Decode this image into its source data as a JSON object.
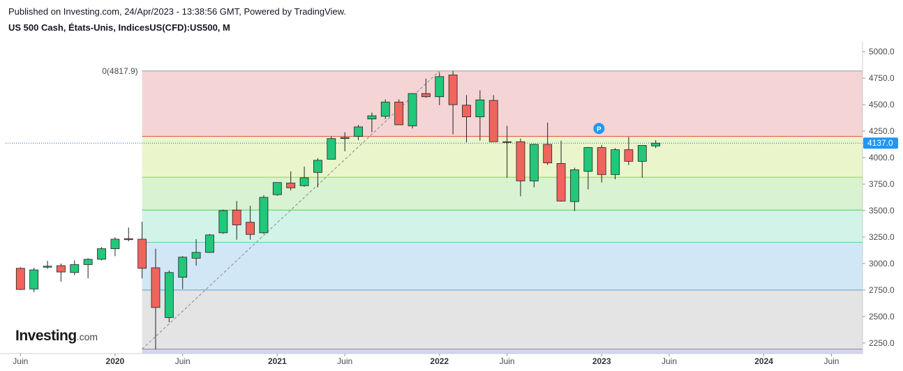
{
  "header": {
    "published": "Published on Investing.com, 24/Apr/2023 - 13:38:56 GMT, Powered by TradingView.",
    "symbol": "US 500 Cash, États-Unis, IndicesUS(CFD):US500, M"
  },
  "logo": {
    "main": "Investing",
    "domain": ".com"
  },
  "colors": {
    "up": "#22c77a",
    "down": "#f0645c",
    "wick": "#222222",
    "last_price_badge": "#2196f3",
    "marker": "#2196f3"
  },
  "chart_data": {
    "type": "candlestick",
    "ylim": [
      2150,
      5080
    ],
    "yticks": [
      "2250.0",
      "2500.0",
      "2750.0",
      "3000.0",
      "3250.0",
      "3500.0",
      "3750.0",
      "4000.0",
      "4250.0",
      "4500.0",
      "4750.0",
      "5000.0"
    ],
    "xticks": [
      {
        "label": "Juin",
        "bold": false,
        "x": 0
      },
      {
        "label": "2020",
        "bold": true,
        "x": 7
      },
      {
        "label": "Juin",
        "bold": false,
        "x": 12
      },
      {
        "label": "2021",
        "bold": true,
        "x": 19
      },
      {
        "label": "Juin",
        "bold": false,
        "x": 24
      },
      {
        "label": "2022",
        "bold": true,
        "x": 31
      },
      {
        "label": "Juin",
        "bold": false,
        "x": 36
      },
      {
        "label": "2023",
        "bold": true,
        "x": 43
      },
      {
        "label": "Juin",
        "bold": false,
        "x": 48
      },
      {
        "label": "2024",
        "bold": true,
        "x": 55
      },
      {
        "label": "Juin",
        "bold": false,
        "x": 60
      }
    ],
    "x_range": [
      -1.1,
      62.3
    ],
    "last_price": "4137.0",
    "last_price_value": 4137.0,
    "fib_label": "0(4817.9)",
    "fib_levels": [
      {
        "level": 4817.9,
        "line": "#999999",
        "fill": "#f4d4d4"
      },
      {
        "level": 4200.0,
        "line": "#e0523f",
        "fill": "#ebf5cc"
      },
      {
        "level": 3815.0,
        "line": "#9bd14c",
        "fill": "#d8f2d2"
      },
      {
        "level": 3505.0,
        "line": "#4cd44c",
        "fill": "#d2f3e8"
      },
      {
        "level": 3200.0,
        "line": "#66cfb0",
        "fill": "#d2e7f5"
      },
      {
        "level": 2750.0,
        "line": "#5c9fc9",
        "fill": "#e4e4e4"
      },
      {
        "level": 2192.0,
        "line": "#888888",
        "fill": "#d4d4f5"
      }
    ],
    "fib_fill_bottom": 2150,
    "fib_start_x": 9.0,
    "trendline": {
      "from": [
        9.0,
        2192
      ],
      "to": [
        31.0,
        4817.9
      ]
    },
    "marker": {
      "x": 42.8,
      "y": 4275,
      "label": "P"
    },
    "candles": [
      {
        "o": 2955,
        "h": 2965,
        "l": 2750,
        "c": 2755
      },
      {
        "o": 2760,
        "h": 2960,
        "l": 2730,
        "c": 2940
      },
      {
        "o": 2965,
        "h": 3025,
        "l": 2950,
        "c": 2975
      },
      {
        "o": 2980,
        "h": 3000,
        "l": 2830,
        "c": 2920
      },
      {
        "o": 2915,
        "h": 3030,
        "l": 2890,
        "c": 2990
      },
      {
        "o": 2990,
        "h": 3050,
        "l": 2860,
        "c": 3040
      },
      {
        "o": 3040,
        "h": 3155,
        "l": 3030,
        "c": 3140
      },
      {
        "o": 3140,
        "h": 3250,
        "l": 3070,
        "c": 3230
      },
      {
        "o": 3235,
        "h": 3340,
        "l": 3210,
        "c": 3225
      },
      {
        "o": 3230,
        "h": 3395,
        "l": 2860,
        "c": 2955
      },
      {
        "o": 2960,
        "h": 3140,
        "l": 2190,
        "c": 2585
      },
      {
        "o": 2490,
        "h": 2935,
        "l": 2445,
        "c": 2915
      },
      {
        "o": 2870,
        "h": 3070,
        "l": 2760,
        "c": 3060
      },
      {
        "o": 3050,
        "h": 3230,
        "l": 2980,
        "c": 3105
      },
      {
        "o": 3105,
        "h": 3280,
        "l": 3100,
        "c": 3270
      },
      {
        "o": 3290,
        "h": 3510,
        "l": 3280,
        "c": 3500
      },
      {
        "o": 3505,
        "h": 3590,
        "l": 3225,
        "c": 3365
      },
      {
        "o": 3390,
        "h": 3545,
        "l": 3225,
        "c": 3275
      },
      {
        "o": 3290,
        "h": 3645,
        "l": 3280,
        "c": 3625
      },
      {
        "o": 3650,
        "h": 3760,
        "l": 3640,
        "c": 3765
      },
      {
        "o": 3760,
        "h": 3870,
        "l": 3690,
        "c": 3715
      },
      {
        "o": 3735,
        "h": 3915,
        "l": 3725,
        "c": 3810
      },
      {
        "o": 3860,
        "h": 3995,
        "l": 3720,
        "c": 3975
      },
      {
        "o": 3985,
        "h": 4200,
        "l": 3990,
        "c": 4180
      },
      {
        "o": 4180,
        "h": 4240,
        "l": 4060,
        "c": 4190
      },
      {
        "o": 4200,
        "h": 4310,
        "l": 4165,
        "c": 4290
      },
      {
        "o": 4365,
        "h": 4425,
        "l": 4240,
        "c": 4395
      },
      {
        "o": 4390,
        "h": 4550,
        "l": 4365,
        "c": 4525
      },
      {
        "o": 4525,
        "h": 4550,
        "l": 4310,
        "c": 4310
      },
      {
        "o": 4300,
        "h": 4610,
        "l": 4275,
        "c": 4605
      },
      {
        "o": 4605,
        "h": 4745,
        "l": 4565,
        "c": 4575
      },
      {
        "o": 4575,
        "h": 4805,
        "l": 4495,
        "c": 4765
      },
      {
        "o": 4780,
        "h": 4818,
        "l": 4220,
        "c": 4500
      },
      {
        "o": 4495,
        "h": 4590,
        "l": 4145,
        "c": 4385
      },
      {
        "o": 4385,
        "h": 4635,
        "l": 4160,
        "c": 4545
      },
      {
        "o": 4540,
        "h": 4590,
        "l": 4150,
        "c": 4150
      },
      {
        "o": 4150,
        "h": 4300,
        "l": 3810,
        "c": 4145
      },
      {
        "o": 4150,
        "h": 4180,
        "l": 3635,
        "c": 3780
      },
      {
        "o": 3780,
        "h": 4130,
        "l": 3720,
        "c": 4125
      },
      {
        "o": 4125,
        "h": 4330,
        "l": 3930,
        "c": 3950
      },
      {
        "o": 3945,
        "h": 4160,
        "l": 3585,
        "c": 3590
      },
      {
        "o": 3585,
        "h": 3905,
        "l": 3495,
        "c": 3885
      },
      {
        "o": 3870,
        "h": 4100,
        "l": 3700,
        "c": 4095
      },
      {
        "o": 4095,
        "h": 4120,
        "l": 3765,
        "c": 3840
      },
      {
        "o": 3840,
        "h": 4090,
        "l": 3795,
        "c": 4075
      },
      {
        "o": 4075,
        "h": 4195,
        "l": 3930,
        "c": 3965
      },
      {
        "o": 3965,
        "h": 4110,
        "l": 3810,
        "c": 4115
      },
      {
        "o": 4110,
        "h": 4165,
        "l": 4090,
        "c": 4137
      }
    ]
  }
}
